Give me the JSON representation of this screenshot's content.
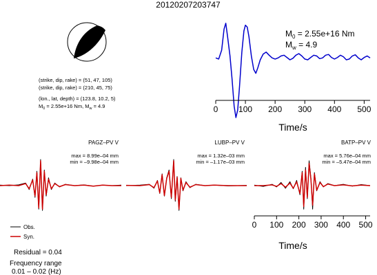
{
  "title": "20120207203747",
  "beachball": {
    "nodal_planes": [
      {
        "label": "(strike, dip, rake) = (51, 47, 105)"
      },
      {
        "label": "(strike, dip, rake) = (210, 45, 75)"
      }
    ],
    "location_label": "(lon., lat, depth) = (123.8, 10.2, 5)",
    "moment_label": "M",
    "moment_sub": "0",
    "moment_value": " = 2.55e+16 Nm, M",
    "mw_sub": "w",
    "mw_value": " = 4.9"
  },
  "stf": {
    "m0_prefix": "M",
    "m0_sub": "0",
    "m0_value": " = 2.55e+16 Nm",
    "mw_prefix": "M",
    "mw_sub": "w",
    "mw_value": " = 4.9",
    "xlabel": "Time/s",
    "x_ticks": [
      0,
      100,
      200,
      300,
      400,
      500
    ],
    "xlim": [
      0,
      520
    ],
    "color": "#0000cc"
  },
  "waveform_axis": {
    "xlabel": "Time/s",
    "x_ticks": [
      0,
      100,
      200,
      300,
      400,
      500
    ],
    "xlim": [
      0,
      520
    ]
  },
  "stations": [
    {
      "name": "PAGZ–PV V",
      "max": "max = 8.99e–04 mm",
      "min": "min = –9.98e–04 mm"
    },
    {
      "name": "LUBP–PV V",
      "max": "max = 1.32e–03 mm",
      "min": "min = –1.17e–03 mm"
    },
    {
      "name": "BATP–PV V",
      "max": "max = 5.76e–04 mm",
      "min": "min = –5.47e–04 mm"
    }
  ],
  "legend": {
    "obs": "Obs.",
    "syn": "Syn.",
    "obs_color": "#000000",
    "syn_color": "#cc0000"
  },
  "residual": "Residual = 0.04",
  "freq_label": "Frequency range",
  "freq_value": "0.01 – 0.02 (Hz)",
  "chart_data": [
    {
      "type": "line",
      "title": "",
      "xlabel": "Time/s",
      "ylabel": "",
      "xlim": [
        0,
        520
      ],
      "series": [
        {
          "values": [
            [
              0,
              0.05
            ],
            [
              10,
              0.02
            ],
            [
              20,
              0.25
            ],
            [
              28,
              0.8
            ],
            [
              34,
              0.95
            ],
            [
              40,
              0.6
            ],
            [
              48,
              0.1
            ],
            [
              55,
              -0.5
            ],
            [
              62,
              -1.2
            ],
            [
              68,
              -1.5
            ],
            [
              74,
              -1.3
            ],
            [
              80,
              -0.7
            ],
            [
              88,
              0.2
            ],
            [
              95,
              0.75
            ],
            [
              100,
              0.9
            ],
            [
              106,
              0.85
            ],
            [
              112,
              0.6
            ],
            [
              120,
              0.1
            ],
            [
              128,
              -0.25
            ],
            [
              135,
              -0.35
            ],
            [
              142,
              -0.2
            ],
            [
              150,
              0.0
            ],
            [
              160,
              0.15
            ],
            [
              170,
              0.2
            ],
            [
              180,
              0.12
            ],
            [
              190,
              0.05
            ],
            [
              200,
              0.02
            ],
            [
              210,
              0.05
            ],
            [
              220,
              0.1
            ],
            [
              230,
              0.12
            ],
            [
              240,
              0.06
            ],
            [
              250,
              0.0
            ],
            [
              260,
              0.04
            ],
            [
              270,
              0.12
            ],
            [
              280,
              0.16
            ],
            [
              290,
              0.1
            ],
            [
              300,
              0.02
            ],
            [
              310,
              0.0
            ],
            [
              320,
              0.06
            ],
            [
              330,
              0.12
            ],
            [
              340,
              0.1
            ],
            [
              350,
              0.03
            ],
            [
              360,
              0.05
            ],
            [
              370,
              0.12
            ],
            [
              380,
              0.14
            ],
            [
              390,
              0.06
            ],
            [
              400,
              0.02
            ],
            [
              410,
              0.06
            ],
            [
              420,
              0.12
            ],
            [
              430,
              0.08
            ],
            [
              440,
              0.0
            ],
            [
              450,
              0.02
            ],
            [
              460,
              0.1
            ],
            [
              470,
              0.13
            ],
            [
              480,
              0.05
            ],
            [
              490,
              0.0
            ],
            [
              500,
              0.06
            ],
            [
              510,
              0.1
            ],
            [
              520,
              0.05
            ]
          ]
        }
      ]
    },
    {
      "type": "line",
      "title": "PAGZ–PV V",
      "xlim": [
        0,
        520
      ],
      "series": [
        {
          "name": "Obs.",
          "values": [
            [
              0,
              0.02
            ],
            [
              40,
              0.0
            ],
            [
              80,
              0.03
            ],
            [
              110,
              0.1
            ],
            [
              125,
              -0.15
            ],
            [
              140,
              0.25
            ],
            [
              150,
              -0.45
            ],
            [
              158,
              0.55
            ],
            [
              166,
              -0.9
            ],
            [
              174,
              1.0
            ],
            [
              182,
              -0.95
            ],
            [
              190,
              0.6
            ],
            [
              198,
              -0.4
            ],
            [
              208,
              0.3
            ],
            [
              220,
              -0.15
            ],
            [
              235,
              0.1
            ],
            [
              255,
              -0.05
            ],
            [
              280,
              0.05
            ],
            [
              320,
              0.0
            ],
            [
              360,
              0.03
            ],
            [
              400,
              -0.02
            ],
            [
              440,
              0.02
            ],
            [
              480,
              0.0
            ],
            [
              520,
              0.02
            ]
          ]
        },
        {
          "name": "Syn.",
          "values": [
            [
              0,
              0.0
            ],
            [
              40,
              0.02
            ],
            [
              80,
              0.0
            ],
            [
              110,
              0.08
            ],
            [
              125,
              -0.12
            ],
            [
              140,
              0.22
            ],
            [
              150,
              -0.4
            ],
            [
              158,
              0.5
            ],
            [
              166,
              -0.85
            ],
            [
              174,
              0.95
            ],
            [
              182,
              -0.9
            ],
            [
              190,
              0.55
            ],
            [
              198,
              -0.35
            ],
            [
              208,
              0.25
            ],
            [
              220,
              -0.12
            ],
            [
              235,
              0.08
            ],
            [
              255,
              -0.04
            ],
            [
              280,
              0.04
            ],
            [
              320,
              0.0
            ],
            [
              360,
              0.02
            ],
            [
              400,
              -0.02
            ],
            [
              440,
              0.02
            ],
            [
              480,
              0.0
            ],
            [
              520,
              0.0
            ]
          ]
        }
      ]
    },
    {
      "type": "line",
      "title": "LUBP–PV V",
      "xlim": [
        0,
        520
      ],
      "series": [
        {
          "name": "Obs.",
          "values": [
            [
              0,
              0.0
            ],
            [
              60,
              0.02
            ],
            [
              100,
              0.05
            ],
            [
              120,
              -0.1
            ],
            [
              135,
              0.2
            ],
            [
              145,
              -0.3
            ],
            [
              155,
              0.45
            ],
            [
              165,
              -0.4
            ],
            [
              175,
              0.3
            ],
            [
              185,
              0.6
            ],
            [
              195,
              -0.5
            ],
            [
              205,
              1.0
            ],
            [
              212,
              -0.6
            ],
            [
              220,
              0.35
            ],
            [
              228,
              -0.95
            ],
            [
              236,
              0.3
            ],
            [
              245,
              -0.2
            ],
            [
              258,
              0.15
            ],
            [
              275,
              -0.08
            ],
            [
              300,
              0.05
            ],
            [
              340,
              0.0
            ],
            [
              380,
              0.02
            ],
            [
              440,
              -0.01
            ],
            [
              520,
              0.01
            ]
          ]
        },
        {
          "name": "Syn.",
          "values": [
            [
              0,
              0.01
            ],
            [
              60,
              0.0
            ],
            [
              100,
              0.04
            ],
            [
              120,
              -0.08
            ],
            [
              135,
              0.18
            ],
            [
              145,
              -0.28
            ],
            [
              155,
              0.42
            ],
            [
              165,
              -0.38
            ],
            [
              175,
              0.28
            ],
            [
              185,
              0.55
            ],
            [
              195,
              -0.45
            ],
            [
              205,
              0.95
            ],
            [
              212,
              -0.55
            ],
            [
              220,
              0.32
            ],
            [
              228,
              -0.9
            ],
            [
              236,
              0.28
            ],
            [
              245,
              -0.18
            ],
            [
              258,
              0.12
            ],
            [
              275,
              -0.06
            ],
            [
              300,
              0.04
            ],
            [
              340,
              0.0
            ],
            [
              380,
              0.02
            ],
            [
              440,
              0.0
            ],
            [
              520,
              0.0
            ]
          ]
        }
      ]
    },
    {
      "type": "line",
      "title": "BATP–PV V",
      "xlabel": "Time/s",
      "xlim": [
        0,
        520
      ],
      "series": [
        {
          "name": "Obs.",
          "values": [
            [
              0,
              0.02
            ],
            [
              40,
              -0.03
            ],
            [
              80,
              0.05
            ],
            [
              100,
              -0.05
            ],
            [
              120,
              0.12
            ],
            [
              140,
              -0.1
            ],
            [
              160,
              0.15
            ],
            [
              175,
              -0.12
            ],
            [
              190,
              0.2
            ],
            [
              205,
              -0.35
            ],
            [
              215,
              0.55
            ],
            [
              222,
              -0.9
            ],
            [
              230,
              0.7
            ],
            [
              238,
              -0.5
            ],
            [
              246,
              0.95
            ],
            [
              254,
              0.3
            ],
            [
              262,
              -0.9
            ],
            [
              270,
              0.5
            ],
            [
              280,
              -0.2
            ],
            [
              295,
              0.15
            ],
            [
              310,
              -0.05
            ],
            [
              330,
              0.08
            ],
            [
              360,
              0.0
            ],
            [
              400,
              0.05
            ],
            [
              440,
              -0.02
            ],
            [
              480,
              0.04
            ],
            [
              520,
              0.0
            ]
          ]
        },
        {
          "name": "Syn.",
          "values": [
            [
              0,
              0.0
            ],
            [
              40,
              0.0
            ],
            [
              80,
              0.03
            ],
            [
              100,
              -0.03
            ],
            [
              120,
              0.08
            ],
            [
              140,
              -0.06
            ],
            [
              160,
              0.1
            ],
            [
              175,
              -0.1
            ],
            [
              190,
              0.15
            ],
            [
              205,
              -0.3
            ],
            [
              215,
              0.5
            ],
            [
              222,
              -0.8
            ],
            [
              230,
              0.6
            ],
            [
              238,
              -0.45
            ],
            [
              246,
              0.85
            ],
            [
              254,
              0.25
            ],
            [
              262,
              -0.75
            ],
            [
              270,
              0.45
            ],
            [
              280,
              -0.18
            ],
            [
              295,
              0.12
            ],
            [
              310,
              -0.04
            ],
            [
              330,
              0.06
            ],
            [
              360,
              0.0
            ],
            [
              400,
              0.03
            ],
            [
              440,
              -0.01
            ],
            [
              480,
              0.02
            ],
            [
              520,
              0.0
            ]
          ]
        }
      ]
    }
  ]
}
